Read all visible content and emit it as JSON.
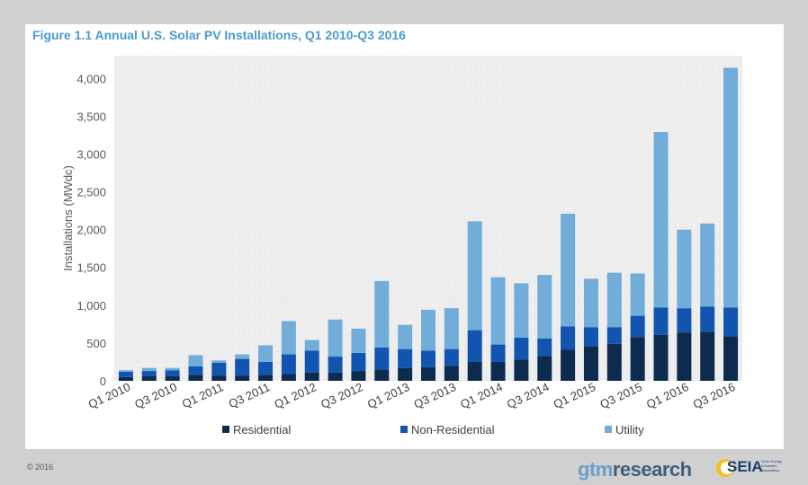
{
  "figure_title": "Figure 1.1 Annual U.S. Solar PV Installations, Q1 2010-Q3 2016",
  "footer": {
    "copyright": "© 2016",
    "brand_gtm_a": "gtm",
    "brand_gtm_b": "research",
    "brand_seia": "SEIA",
    "brand_seia_sub": "Solar Energy Industries Association"
  },
  "colors": {
    "residential": "#0d2a4f",
    "non_residential": "#1155b0",
    "utility": "#72acd9",
    "title": "#4a9bd0",
    "plot_bg": "#efefef"
  },
  "chart_data": {
    "type": "bar",
    "stacked": true,
    "title": "Figure 1.1 Annual U.S. Solar PV Installations, Q1 2010-Q3 2016",
    "ylabel": "Installations (MWdc)",
    "xlabel": "",
    "ylim": [
      0,
      4300
    ],
    "yticks": [
      0,
      500,
      1000,
      1500,
      2000,
      2500,
      3000,
      3500,
      4000
    ],
    "ytick_labels": [
      "0",
      "500",
      "1,000",
      "1,500",
      "2,000",
      "2,500",
      "3,000",
      "3,500",
      "4,000"
    ],
    "categories": [
      "Q1 2010",
      "Q2 2010",
      "Q3 2010",
      "Q4 2010",
      "Q1 2011",
      "Q2 2011",
      "Q3 2011",
      "Q4 2011",
      "Q1 2012",
      "Q2 2012",
      "Q3 2012",
      "Q4 2012",
      "Q1 2013",
      "Q2 2013",
      "Q3 2013",
      "Q4 2013",
      "Q1 2014",
      "Q2 2014",
      "Q3 2014",
      "Q4 2014",
      "Q1 2015",
      "Q2 2015",
      "Q3 2015",
      "Q4 2015",
      "Q1 2016",
      "Q2 2016",
      "Q3 2016"
    ],
    "xtick_labels": [
      "Q1 2010",
      "Q3 2010",
      "Q1 2011",
      "Q3 2011",
      "Q1 2012",
      "Q3 2012",
      "Q1 2013",
      "Q3 2013",
      "Q1 2014",
      "Q3 2014",
      "Q1 2015",
      "Q3 2015",
      "Q1 2016",
      "Q3 2016"
    ],
    "series": [
      {
        "name": "Residential",
        "values": [
          50,
          60,
          60,
          80,
          70,
          70,
          80,
          90,
          110,
          110,
          130,
          150,
          170,
          180,
          200,
          250,
          250,
          280,
          330,
          410,
          460,
          490,
          580,
          610,
          640,
          650,
          590
        ]
      },
      {
        "name": "Non-Residential",
        "values": [
          70,
          70,
          80,
          110,
          170,
          220,
          170,
          260,
          290,
          210,
          240,
          290,
          250,
          220,
          220,
          420,
          230,
          290,
          230,
          310,
          250,
          220,
          280,
          360,
          320,
          330,
          380
        ]
      },
      {
        "name": "Utility",
        "values": [
          20,
          40,
          30,
          150,
          30,
          60,
          220,
          440,
          140,
          490,
          320,
          880,
          320,
          540,
          540,
          1440,
          890,
          720,
          840,
          1490,
          640,
          720,
          560,
          2320,
          1040,
          1100,
          3170
        ]
      }
    ],
    "legend_position": "bottom",
    "grid": true
  }
}
